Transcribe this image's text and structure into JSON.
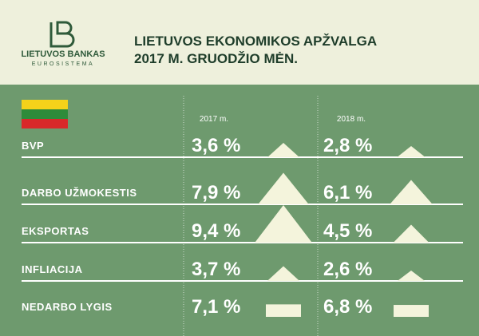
{
  "header": {
    "logo_name": "LIETUVOS BANKAS",
    "logo_sub": "EUROSISTEMA",
    "title_line1": "LIETUVOS EKONOMIKOS APŽVALGA",
    "title_line2": "2017 M. GRUODŽIO MĖN."
  },
  "chart_data": {
    "type": "triangle-table",
    "categories": [
      "BVP",
      "DARBO UŽMOKESTIS",
      "EKSPORTAS",
      "INFLIACIJA",
      "NEDARBO LYGIS"
    ],
    "shapes": [
      "triangle",
      "triangle",
      "triangle",
      "triangle",
      "rect"
    ],
    "color": "#f4f4dc",
    "series": [
      {
        "name": "2017 m.",
        "values": [
          3.6,
          7.9,
          9.4,
          3.7,
          7.1
        ],
        "value_labels": [
          "3,6 %",
          "7,9 %",
          "9,4 %",
          "3,7 %",
          "7,1 %"
        ]
      },
      {
        "name": "2018 m.",
        "values": [
          2.8,
          6.1,
          4.5,
          2.6,
          6.8
        ],
        "value_labels": [
          "2,8 %",
          "6,1 %",
          "4,5 %",
          "2,6 %",
          "6,8 %"
        ]
      }
    ]
  }
}
